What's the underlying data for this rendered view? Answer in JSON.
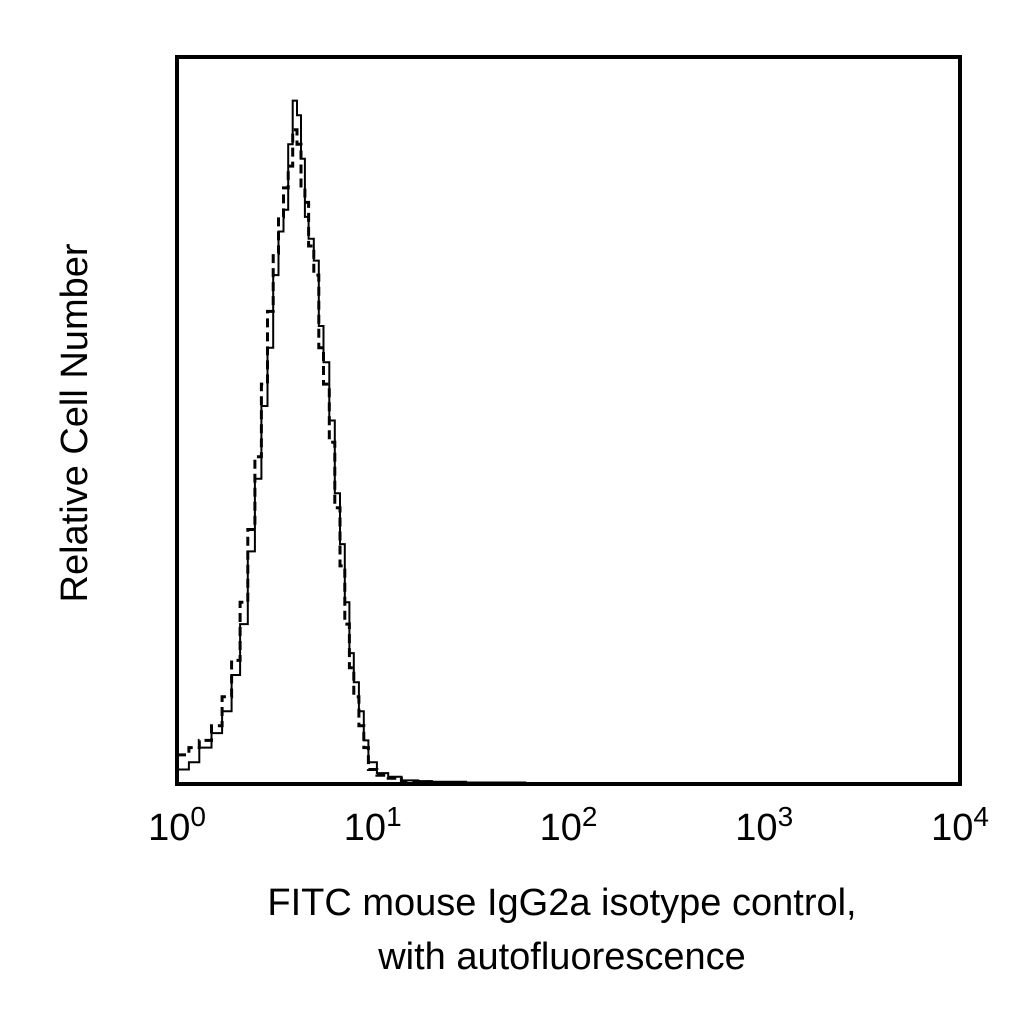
{
  "chart_data": {
    "type": "histogram",
    "title": "",
    "xlabel_line1": "FITC mouse IgG2a isotype control,",
    "xlabel_line2": "with autofluorescence",
    "ylabel": "Relative Cell Number",
    "x_scale": "log",
    "xlim": [
      1,
      10000
    ],
    "ylim": [
      0,
      1.0
    ],
    "grid": false,
    "x_ticks": [
      {
        "value": 1,
        "base": "10",
        "exp": "0"
      },
      {
        "value": 10,
        "base": "10",
        "exp": "1"
      },
      {
        "value": 100,
        "base": "10",
        "exp": "2"
      },
      {
        "value": 1000,
        "base": "10",
        "exp": "3"
      },
      {
        "value": 10000,
        "base": "10",
        "exp": "4"
      }
    ],
    "series": [
      {
        "style": "solid",
        "x": [
          1.0,
          1.15,
          1.3,
          1.5,
          1.7,
          1.9,
          2.1,
          2.3,
          2.5,
          2.7,
          2.9,
          3.1,
          3.3,
          3.5,
          3.7,
          3.9,
          4.1,
          4.3,
          4.5,
          4.7,
          5.0,
          5.3,
          5.6,
          6.0,
          6.4,
          6.8,
          7.2,
          7.6,
          8.0,
          8.5,
          9.0,
          9.5,
          10.5,
          12.0,
          14.0,
          17.0,
          20.0,
          30.0,
          60.0,
          100.0,
          1000.0,
          10000.0
        ],
        "y": [
          0.02,
          0.03,
          0.05,
          0.07,
          0.1,
          0.15,
          0.22,
          0.32,
          0.42,
          0.52,
          0.6,
          0.7,
          0.76,
          0.79,
          0.88,
          0.94,
          0.92,
          0.86,
          0.78,
          0.75,
          0.72,
          0.63,
          0.58,
          0.5,
          0.4,
          0.33,
          0.25,
          0.18,
          0.14,
          0.1,
          0.06,
          0.03,
          0.015,
          0.01,
          0.005,
          0.004,
          0.003,
          0.002,
          0.001,
          0.0,
          0.0,
          0.0
        ]
      },
      {
        "style": "dashed",
        "x": [
          1.0,
          1.15,
          1.3,
          1.5,
          1.7,
          1.9,
          2.1,
          2.3,
          2.5,
          2.7,
          2.9,
          3.1,
          3.3,
          3.5,
          3.7,
          3.9,
          4.1,
          4.3,
          4.5,
          4.7,
          5.0,
          5.3,
          5.6,
          6.0,
          6.4,
          6.8,
          7.2,
          7.6,
          8.0,
          8.5,
          9.0,
          9.5,
          10.5,
          12.0,
          14.0,
          17.0,
          20.0,
          30.0,
          60.0,
          100.0,
          1000.0,
          10000.0
        ],
        "y": [
          0.04,
          0.05,
          0.06,
          0.08,
          0.12,
          0.17,
          0.25,
          0.35,
          0.45,
          0.55,
          0.65,
          0.73,
          0.78,
          0.82,
          0.85,
          0.9,
          0.88,
          0.82,
          0.8,
          0.74,
          0.7,
          0.6,
          0.55,
          0.47,
          0.38,
          0.3,
          0.22,
          0.16,
          0.12,
          0.08,
          0.05,
          0.02,
          0.012,
          0.008,
          0.004,
          0.003,
          0.002,
          0.001,
          0.0,
          0.0,
          0.0,
          0.0
        ]
      }
    ]
  }
}
